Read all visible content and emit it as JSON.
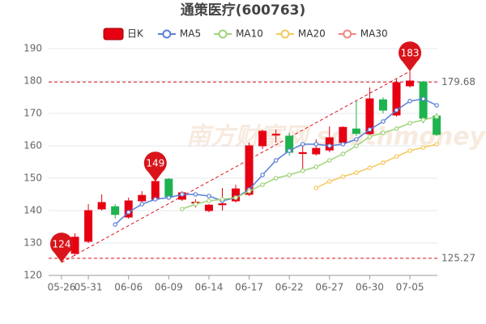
{
  "chart_data": {
    "type": "candlestick",
    "title": "通策医疗(600763)",
    "watermark": "南方财富网 southmoney",
    "candle_name": "日K",
    "categories": [
      "05-26",
      null,
      "05-31",
      null,
      null,
      "06-06",
      null,
      null,
      "06-09",
      null,
      null,
      "06-14",
      null,
      null,
      "06-17",
      null,
      null,
      "06-22",
      null,
      null,
      "06-27",
      null,
      null,
      "06-30",
      null,
      null,
      "07-05",
      null,
      null
    ],
    "open": [
      128.7,
      126.8,
      130.5,
      140.5,
      141.2,
      138,
      143,
      143.5,
      149.7,
      143.5,
      142.3,
      140,
      141.8,
      143,
      145,
      160,
      163.3,
      163,
      157.6,
      157.5,
      158.7,
      161,
      165.2,
      163.7,
      174.2,
      169.5,
      178.5,
      179.7,
      169.2
    ],
    "high": [
      130,
      133,
      142,
      145,
      142,
      144,
      146,
      149,
      150,
      146,
      143.5,
      142,
      147,
      148,
      161,
      165,
      165,
      164,
      160,
      162,
      166,
      166,
      174,
      178,
      175,
      180.5,
      183,
      180,
      170
    ],
    "low": [
      124,
      126,
      130,
      140,
      137.5,
      137.5,
      142.5,
      143,
      144,
      143,
      141,
      139.5,
      140,
      142.5,
      144.5,
      159,
      161,
      157,
      152,
      157,
      158,
      160,
      163,
      163,
      170,
      169,
      178,
      167,
      163
    ],
    "close": [
      125.8,
      131.8,
      140,
      142.5,
      138.8,
      143,
      144.7,
      149,
      144.3,
      145.5,
      142.6,
      141.7,
      142.1,
      146.7,
      160,
      164.5,
      163.6,
      158,
      157.9,
      159.2,
      162.5,
      165.7,
      163.8,
      174.5,
      171,
      179.5,
      180,
      168.5,
      163.5
    ],
    "up_color": "#e60012",
    "down_color": "#1db34f",
    "series": [
      {
        "name": "MA5",
        "color": "#5a7fd8",
        "values": [
          null,
          null,
          null,
          null,
          135.7,
          139.5,
          142,
          143.5,
          144,
          145,
          145,
          144.5,
          143,
          144,
          146.5,
          151,
          155.5,
          158.5,
          160.5,
          160.5,
          160,
          160.5,
          162,
          165,
          167.5,
          171,
          173.8,
          174.5,
          172.5
        ]
      },
      {
        "name": "MA10",
        "color": "#9fd47a",
        "values": [
          null,
          null,
          null,
          null,
          null,
          null,
          null,
          null,
          null,
          140.5,
          142,
          143,
          143.5,
          144,
          146,
          148,
          150,
          151,
          152.3,
          153.5,
          155.5,
          157.5,
          160,
          162.8,
          164,
          165.3,
          167,
          168,
          169
        ]
      },
      {
        "name": "MA20",
        "color": "#f5c85a",
        "values": [
          null,
          null,
          null,
          null,
          null,
          null,
          null,
          null,
          null,
          null,
          null,
          null,
          null,
          null,
          null,
          null,
          null,
          null,
          null,
          147,
          149,
          150.5,
          151.7,
          153.2,
          154.8,
          156.7,
          158.5,
          159.5,
          160.5
        ]
      },
      {
        "name": "MA30",
        "color": "#f08585",
        "values": [
          null,
          null,
          null,
          null,
          null,
          null,
          null,
          null,
          null,
          null,
          null,
          null,
          null,
          null,
          null,
          null,
          null,
          null,
          null,
          null,
          null,
          null,
          null,
          null,
          null,
          null,
          null,
          null,
          null
        ]
      }
    ],
    "annotations": [
      {
        "index": 0,
        "value": 124
      },
      {
        "index": 7,
        "value": 149
      },
      {
        "index": 26,
        "value": 183
      }
    ],
    "ref_lines": [
      179.68,
      125.27
    ],
    "ref_color": "#d9141b",
    "ylim": [
      120,
      190
    ],
    "yticks": [
      120,
      130,
      140,
      150,
      160,
      170,
      180,
      190
    ],
    "grid": true
  }
}
